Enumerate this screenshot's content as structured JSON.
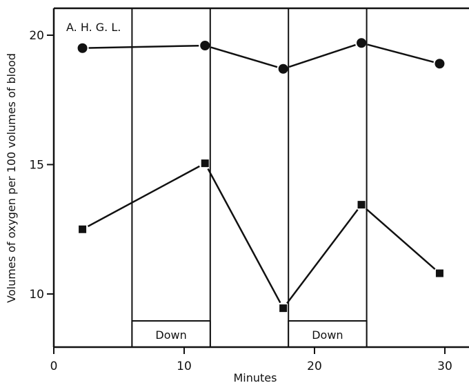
{
  "chart_data": {
    "type": "line",
    "annotation": "A. H. G. L.",
    "xlabel": "Minutes",
    "ylabel": "Volumes of oxygen per 100 volumes of blood",
    "xlim": [
      0,
      32
    ],
    "ylim": [
      8,
      21
    ],
    "x_ticks": [
      0,
      10,
      20,
      30
    ],
    "y_ticks": [
      10,
      15,
      20
    ],
    "grid": false,
    "period_label": "Down",
    "periods": [
      {
        "start": 6,
        "end": 12,
        "label": "Down"
      },
      {
        "start": 18,
        "end": 24,
        "label": "Down"
      }
    ],
    "series": [
      {
        "marker": "circle",
        "color": "#111111",
        "points": [
          [
            2.2,
            19.5
          ],
          [
            11.6,
            19.6
          ],
          [
            17.6,
            18.7
          ],
          [
            23.6,
            19.7
          ],
          [
            29.6,
            18.9
          ]
        ]
      },
      {
        "marker": "square",
        "color": "#111111",
        "points": [
          [
            2.2,
            12.5
          ],
          [
            11.6,
            15.05
          ],
          [
            17.6,
            9.45
          ],
          [
            23.6,
            13.45
          ],
          [
            29.6,
            10.8
          ]
        ]
      }
    ]
  }
}
